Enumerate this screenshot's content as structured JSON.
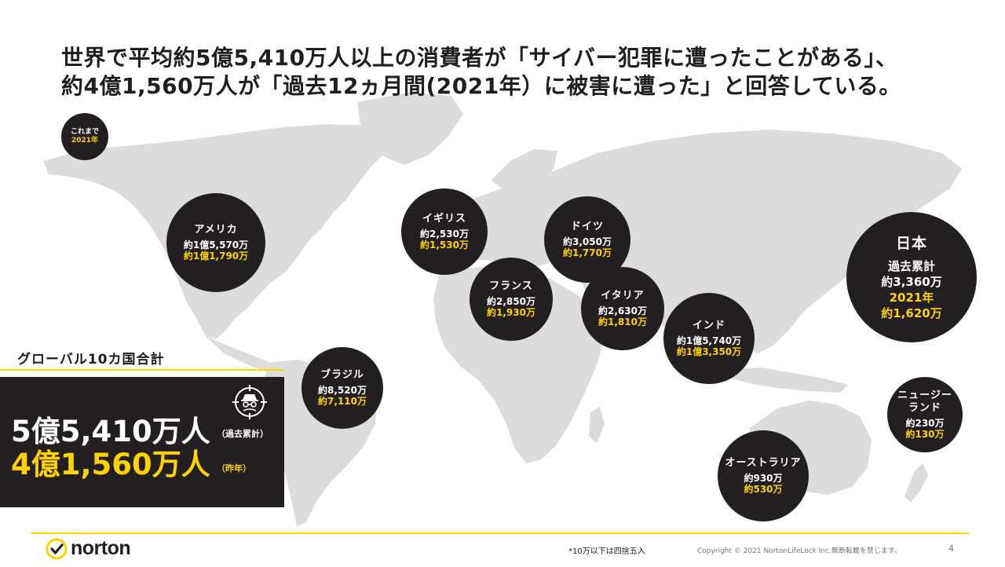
{
  "headline": {
    "line1": "世界で平均約5億5,410万人以上の消費者が「サイバー犯罪に遭ったことがある」、",
    "line2": "約4億1,560万人が「過去12ヵ月間(2021年）に被害に遭った」と回答している。"
  },
  "legend": {
    "line1": "これまで",
    "line2": "2021年"
  },
  "countries": {
    "usa": {
      "name": "アメリカ",
      "total": "約1億5,570万",
      "recent": "約1億1,790万"
    },
    "uk": {
      "name": "イギリス",
      "total": "約2,530万",
      "recent": "約1,530万"
    },
    "germany": {
      "name": "ドイツ",
      "total": "約3,050万",
      "recent": "約1,770万"
    },
    "france": {
      "name": "フランス",
      "total": "約2,850万",
      "recent": "約1,930万"
    },
    "italy": {
      "name": "イタリア",
      "total": "約2,630万",
      "recent": "約1,810万"
    },
    "india": {
      "name": "インド",
      "total": "約1億5,740万",
      "recent": "約1億3,350万"
    },
    "brazil": {
      "name": "ブラジル",
      "total": "約8,520万",
      "recent": "約7,110万"
    },
    "australia": {
      "name": "オーストラリア",
      "total": "約930万",
      "recent": "約530万"
    },
    "nz": {
      "name_line1": "ニュージー",
      "name_line2": "ランド",
      "total": "約230万",
      "recent": "約130万"
    },
    "japan": {
      "name": "日本",
      "label": "過去累計",
      "total": "約3,360万",
      "year": "2021年",
      "recent": "約1,620万"
    }
  },
  "global": {
    "title": "グローバル10カ国合計",
    "total": "5億5,410万人",
    "total_note": "（過去累計）",
    "recent": "4億1,560万人",
    "recent_note": "（昨年）"
  },
  "footer": {
    "logo": "norton",
    "footnote": "*10万以下は四捨五入",
    "copyright": "Copyright © 2021 NortonLifeLock Inc.無断転載を禁じます。",
    "page": "4"
  },
  "colors": {
    "accent": "#ffd200",
    "dark": "#231f20",
    "map": "#dcdcdc"
  }
}
